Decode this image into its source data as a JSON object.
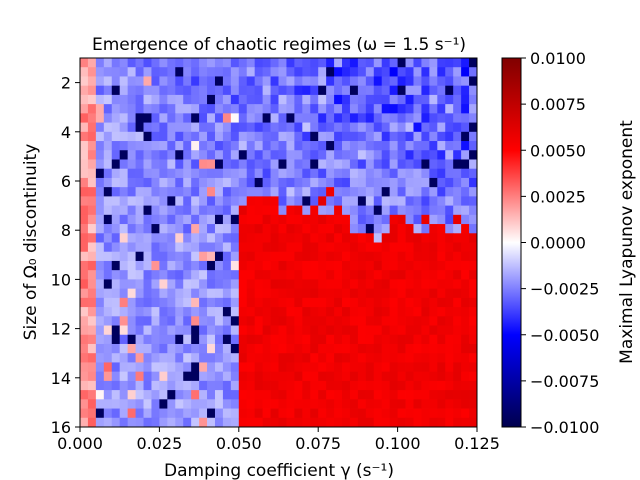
{
  "chart_data": {
    "type": "heatmap",
    "title": "Emergence of chaotic regimes (ω = 1.5 s⁻¹)",
    "xlabel": "Damping coefficient γ (s⁻¹)",
    "ylabel": "Size of Ω₀ discontinuity",
    "xlim": [
      0.0,
      0.125
    ],
    "ylim": [
      16,
      1
    ],
    "xticks": [
      {
        "value": 0.0,
        "label": "0.000"
      },
      {
        "value": 0.025,
        "label": "0.025"
      },
      {
        "value": 0.05,
        "label": "0.050"
      },
      {
        "value": 0.075,
        "label": "0.075"
      },
      {
        "value": 0.1,
        "label": "0.100"
      },
      {
        "value": 0.125,
        "label": "0.125"
      }
    ],
    "yticks": [
      {
        "value": 2,
        "label": "2"
      },
      {
        "value": 4,
        "label": "4"
      },
      {
        "value": 6,
        "label": "6"
      },
      {
        "value": 8,
        "label": "8"
      },
      {
        "value": 10,
        "label": "10"
      },
      {
        "value": 12,
        "label": "12"
      },
      {
        "value": 14,
        "label": "14"
      },
      {
        "value": 16,
        "label": "16"
      }
    ],
    "grid": false,
    "colorbar": {
      "label": "Maximal Lyapunov exponent",
      "range": [
        -0.01,
        0.01
      ],
      "colormap": "seismic",
      "ticks": [
        {
          "value": 0.01,
          "label": "0.0100"
        },
        {
          "value": 0.0075,
          "label": "0.0075"
        },
        {
          "value": 0.005,
          "label": "0.0050"
        },
        {
          "value": 0.0025,
          "label": "0.0025"
        },
        {
          "value": 0.0,
          "label": "0.0000"
        },
        {
          "value": -0.0025,
          "label": "−0.0025"
        },
        {
          "value": -0.005,
          "label": "−0.0050"
        },
        {
          "value": -0.0075,
          "label": "−0.0075"
        },
        {
          "value": -0.01,
          "label": "−0.0100"
        }
      ]
    },
    "grid_shape": {
      "x_cells": 50,
      "y_cells": 40
    },
    "x_range": [
      0.0,
      0.125
    ],
    "y_range": [
      1,
      16
    ],
    "regions": {
      "low_damping_edge": {
        "x_max": 0.006,
        "value": 0.0025
      },
      "transition_gamma": 0.05,
      "chaotic_boundary_y": 7.3,
      "chaotic_value": 0.0055,
      "stable_value": -0.0022
    }
  }
}
